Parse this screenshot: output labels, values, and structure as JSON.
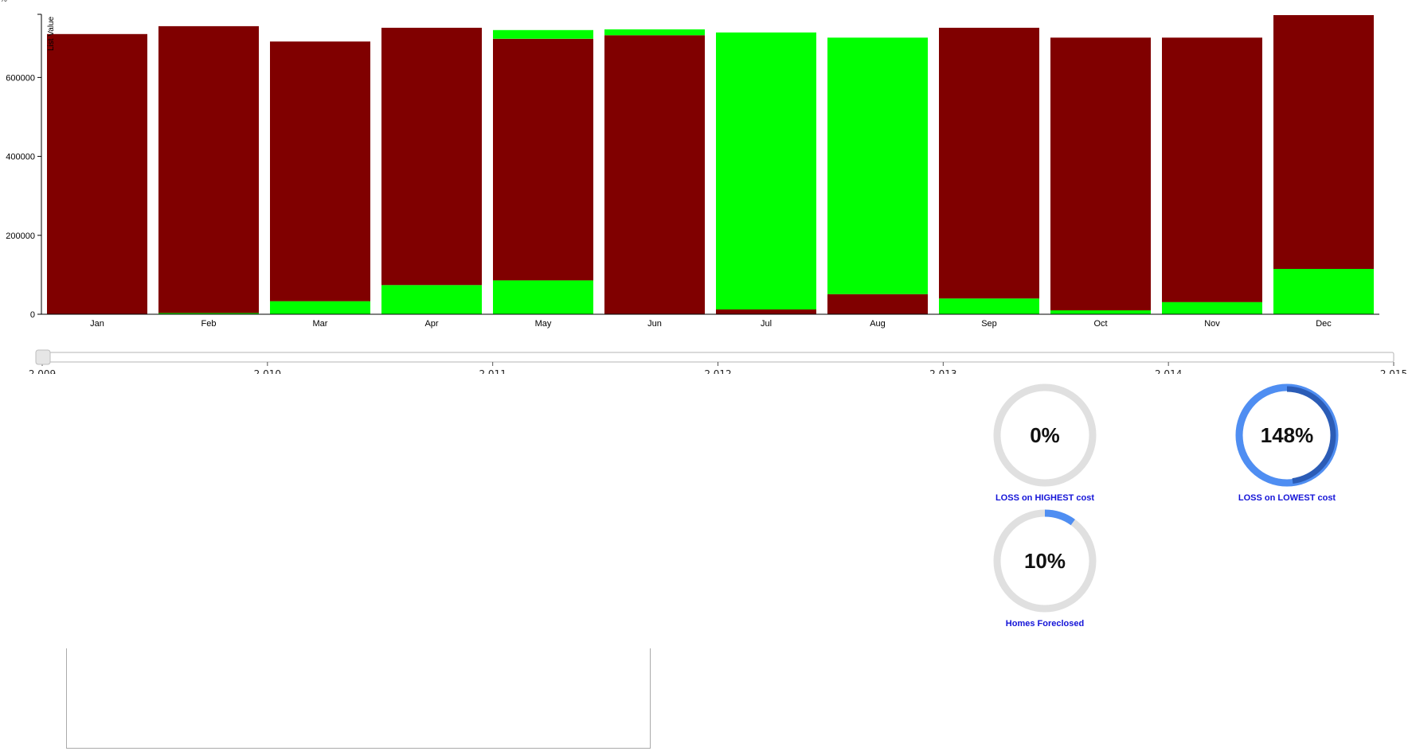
{
  "chart_data": {
    "type": "bar",
    "stacked": true,
    "ylabel": "List Value",
    "ylim": [
      0,
      760000
    ],
    "yticks": [
      0,
      200000,
      400000,
      600000
    ],
    "ytick_labels": [
      "0",
      "200000",
      "400000",
      "600000"
    ],
    "categories": [
      "Jan",
      "Feb",
      "Mar",
      "Apr",
      "May",
      "Jun",
      "Jul",
      "Aug",
      "Sep",
      "Oct",
      "Nov",
      "Dec"
    ],
    "bars": [
      [
        {
          "color": "#800000",
          "value": 710000
        }
      ],
      [
        {
          "color": "#00ff00",
          "value": 3000
        },
        {
          "color": "#800000",
          "value": 727000
        }
      ],
      [
        {
          "color": "#00ff00",
          "value": 33000
        },
        {
          "color": "#800000",
          "value": 658000
        }
      ],
      [
        {
          "color": "#00ff00",
          "value": 74000
        },
        {
          "color": "#800000",
          "value": 652000
        }
      ],
      [
        {
          "color": "#00ff00",
          "value": 86000
        },
        {
          "color": "#800000",
          "value": 612000
        },
        {
          "color": "#00ff00",
          "value": 22000
        }
      ],
      [
        {
          "color": "#800000",
          "value": 707000
        },
        {
          "color": "#00ff00",
          "value": 15000
        }
      ],
      [
        {
          "color": "#800000",
          "value": 12000
        },
        {
          "color": "#00ff00",
          "value": 702000
        }
      ],
      [
        {
          "color": "#800000",
          "value": 51000
        },
        {
          "color": "#00ff00",
          "value": 650000
        }
      ],
      [
        {
          "color": "#00ff00",
          "value": 40000
        },
        {
          "color": "#800000",
          "value": 686000
        }
      ],
      [
        {
          "color": "#00ff00",
          "value": 10000
        },
        {
          "color": "#800000",
          "value": 691000
        }
      ],
      [
        {
          "color": "#00ff00",
          "value": 31000
        },
        {
          "color": "#800000",
          "value": 670000
        }
      ],
      [
        {
          "color": "#00ff00",
          "value": 115000
        },
        {
          "color": "#800000",
          "value": 643000
        }
      ]
    ]
  },
  "year_slider": {
    "min": 2009,
    "max": 2015,
    "value": 2009,
    "tick_labels": [
      "2,009",
      "2,010",
      "2,011",
      "2,012",
      "2,013",
      "2,014",
      "2,015"
    ]
  },
  "gauges": [
    {
      "id": "loss-highest",
      "value_text": "0%",
      "percent": 0,
      "label": "LOSS on HIGHEST cost"
    },
    {
      "id": "loss-lowest",
      "value_text": "148%",
      "percent": 148,
      "label": "LOSS on LOWEST cost"
    },
    {
      "id": "homes-foreclosed",
      "value_text": "10%",
      "percent": 10,
      "label": "Homes Foreclosed"
    }
  ],
  "colors": {
    "loss": "#800000",
    "gain": "#00ff00",
    "gauge_track": "#e0e0e0",
    "gauge_fill": "#4f8ef2",
    "gauge_overflow": "#2b5cb6",
    "gauge_label": "#1414d8"
  },
  "corner_mark": "%"
}
